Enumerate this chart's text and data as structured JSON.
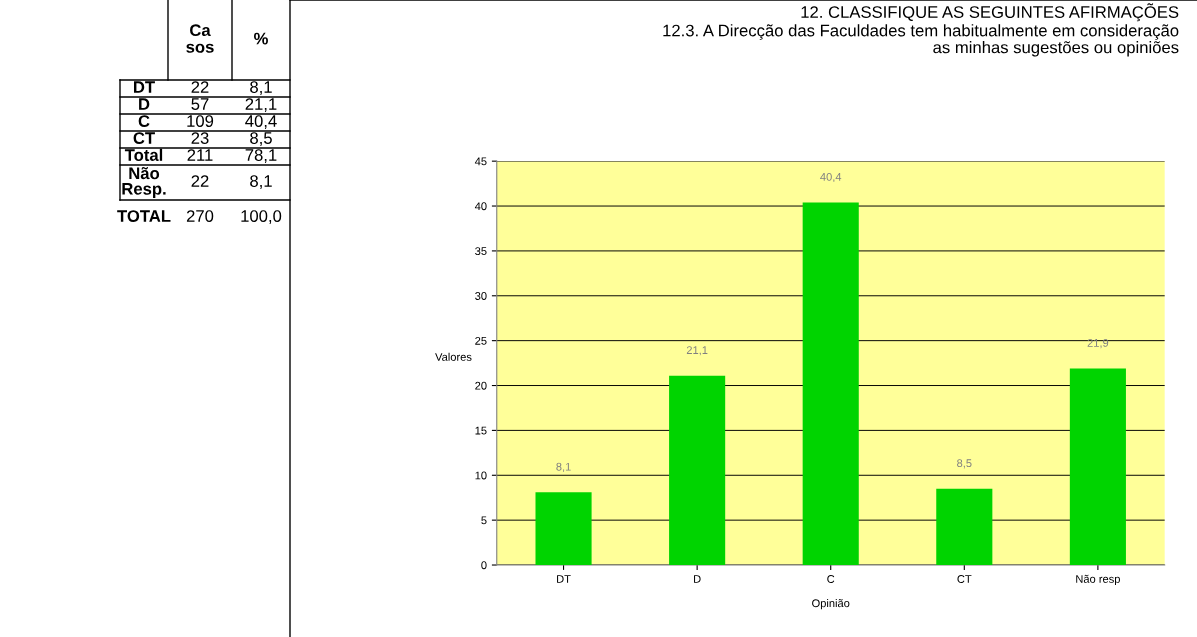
{
  "chart_data": [
    {
      "type": "other",
      "annotations": [
        "Ca\nsos",
        "%",
        "DT",
        "22",
        "8,1",
        "D",
        "57",
        "21,1",
        "C",
        "109",
        "40,4",
        "CT",
        "23",
        "8,5",
        "Total",
        "211",
        "78,1",
        "Não\nResp.",
        "22",
        "8,1",
        "TOTAL",
        "270",
        "100,0"
      ]
    },
    {
      "type": "bar",
      "title": "12. CLASSIFIQUE AS SEGUINTES AFIRMAÇÕES",
      "subtitle": "12.3. A Direcção das Faculdades tem habitualmente em consideração\nas minhas sugestões ou opiniões",
      "categories": [
        "DT",
        "D",
        "C",
        "CT",
        "Não resp"
      ],
      "values": [
        8.1,
        21.1,
        40.4,
        8.5,
        21.9
      ],
      "value_labels": [
        "8,1",
        "21,1",
        "40,4",
        "8,5",
        "21,9"
      ],
      "color": "#00d400",
      "xlabel": "Opinião",
      "ylabel": "Valores",
      "ylim": [
        0,
        45
      ],
      "yticks": [
        0,
        5,
        10,
        15,
        20,
        25,
        30,
        35,
        40,
        45
      ],
      "grid": "y",
      "legend": false
    }
  ]
}
